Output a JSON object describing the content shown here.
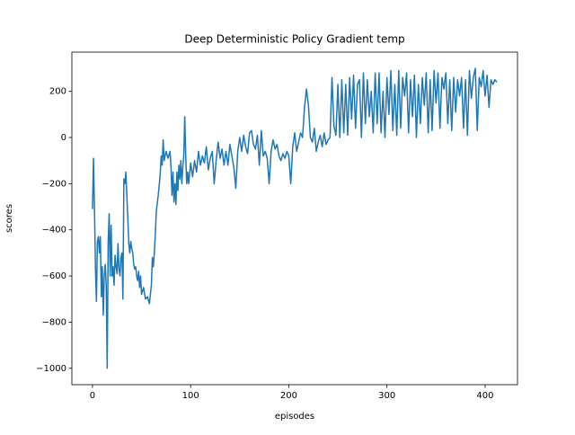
{
  "chart_data": {
    "type": "line",
    "title": "Deep Deterministic Policy Gradient temp",
    "x_label": "episodes",
    "y_label": "scores",
    "x": [
      0,
      1,
      2,
      3,
      4,
      5,
      6,
      7,
      8,
      9,
      10,
      11,
      12,
      13,
      14,
      15,
      16,
      17,
      18,
      19,
      20,
      21,
      22,
      23,
      24,
      25,
      26,
      27,
      28,
      29,
      30,
      31,
      32,
      33,
      34,
      35,
      36,
      37,
      38,
      39,
      40,
      41,
      42,
      43,
      44,
      45,
      46,
      47,
      48,
      49,
      50,
      52,
      54,
      56,
      58,
      60,
      61,
      62,
      63,
      64,
      65,
      67,
      69,
      70,
      71,
      72,
      73,
      75,
      77,
      79,
      80,
      81,
      82,
      83,
      84,
      85,
      86,
      87,
      88,
      89,
      90,
      91,
      92,
      93,
      94,
      95,
      96,
      97,
      98,
      100,
      102,
      104,
      106,
      108,
      110,
      112,
      114,
      116,
      118,
      120,
      122,
      124,
      126,
      128,
      130,
      132,
      134,
      136,
      138,
      140,
      142,
      144,
      146,
      148,
      150,
      152,
      154,
      156,
      158,
      160,
      162,
      164,
      166,
      168,
      170,
      172,
      174,
      176,
      178,
      180,
      182,
      184,
      186,
      188,
      190,
      192,
      194,
      196,
      198,
      200,
      202,
      204,
      206,
      208,
      210,
      212,
      214,
      216,
      218,
      220,
      222,
      224,
      226,
      228,
      230,
      232,
      234,
      236,
      238,
      240,
      242,
      244,
      246,
      248,
      250,
      252,
      254,
      256,
      258,
      260,
      262,
      264,
      266,
      268,
      270,
      272,
      274,
      276,
      278,
      280,
      282,
      284,
      286,
      288,
      290,
      292,
      294,
      296,
      298,
      300,
      302,
      304,
      306,
      308,
      310,
      312,
      314,
      316,
      318,
      320,
      322,
      324,
      326,
      328,
      330,
      332,
      334,
      336,
      338,
      340,
      342,
      344,
      346,
      348,
      350,
      352,
      354,
      356,
      358,
      360,
      362,
      364,
      366,
      368,
      370,
      372,
      374,
      376,
      378,
      380,
      382,
      384,
      386,
      388,
      390,
      392,
      394,
      396,
      398,
      400,
      402,
      404,
      406,
      408,
      410,
      412
    ],
    "series": [
      {
        "name": "scores",
        "color": "#1f77b4",
        "values": [
          -310,
          -90,
          -300,
          -560,
          -710,
          -450,
          -430,
          -500,
          -430,
          -690,
          -560,
          -770,
          -600,
          -550,
          -640,
          -1000,
          -450,
          -330,
          -600,
          -380,
          -600,
          -560,
          -640,
          -510,
          -560,
          -590,
          -460,
          -570,
          -600,
          -520,
          -500,
          -700,
          -180,
          -200,
          -150,
          -250,
          -350,
          -460,
          -500,
          -450,
          -480,
          -500,
          -550,
          -570,
          -560,
          -600,
          -620,
          -580,
          -650,
          -600,
          -680,
          -650,
          -700,
          -690,
          -720,
          -640,
          -520,
          -560,
          -500,
          -420,
          -320,
          -250,
          -160,
          -80,
          -120,
          -10,
          -100,
          -60,
          -90,
          -60,
          -130,
          -250,
          -150,
          -280,
          -200,
          -290,
          -150,
          -230,
          -120,
          -180,
          -100,
          -200,
          -130,
          -80,
          90,
          -80,
          -200,
          -150,
          -200,
          -110,
          -170,
          -100,
          -150,
          -60,
          -120,
          -80,
          -110,
          -40,
          -140,
          -90,
          -60,
          -200,
          -100,
          -20,
          -90,
          -50,
          -120,
          -60,
          -120,
          -30,
          -80,
          -130,
          -220,
          -60,
          0,
          -60,
          10,
          -40,
          -70,
          20,
          30,
          -30,
          -50,
          10,
          -120,
          30,
          -80,
          -60,
          -90,
          -200,
          -60,
          -10,
          -50,
          -30,
          -80,
          -100,
          -70,
          -90,
          -60,
          -80,
          -200,
          -40,
          20,
          -60,
          -20,
          20,
          0,
          130,
          210,
          140,
          0,
          -20,
          40,
          -60,
          -20,
          10,
          -40,
          20,
          -30,
          -10,
          0,
          260,
          50,
          10,
          230,
          0,
          250,
          20,
          230,
          10,
          260,
          80,
          270,
          40,
          230,
          250,
          0,
          280,
          60,
          250,
          90,
          200,
          20,
          280,
          60,
          280,
          20,
          200,
          0,
          260,
          100,
          290,
          30,
          230,
          10,
          290,
          40,
          260,
          180,
          280,
          20,
          250,
          90,
          270,
          0,
          230,
          60,
          260,
          140,
          280,
          20,
          250,
          30,
          290,
          150,
          280,
          40,
          260,
          210,
          280,
          60,
          250,
          30,
          260,
          110,
          250,
          180,
          260,
          40,
          250,
          10,
          290,
          170,
          260,
          300,
          30,
          260,
          220,
          290,
          180,
          270,
          130,
          250,
          230,
          250,
          240
        ]
      }
    ],
    "xlim": [
      -21,
      433
    ],
    "ylim": [
      -1071,
      370
    ],
    "xticks": [
      0,
      100,
      200,
      300,
      400
    ],
    "yticks": [
      {
        "value": -1000,
        "label": "−1000"
      },
      {
        "value": -800,
        "label": "−800"
      },
      {
        "value": -600,
        "label": "−600"
      },
      {
        "value": -400,
        "label": "−400"
      },
      {
        "value": -200,
        "label": "−200"
      },
      0,
      200
    ]
  }
}
